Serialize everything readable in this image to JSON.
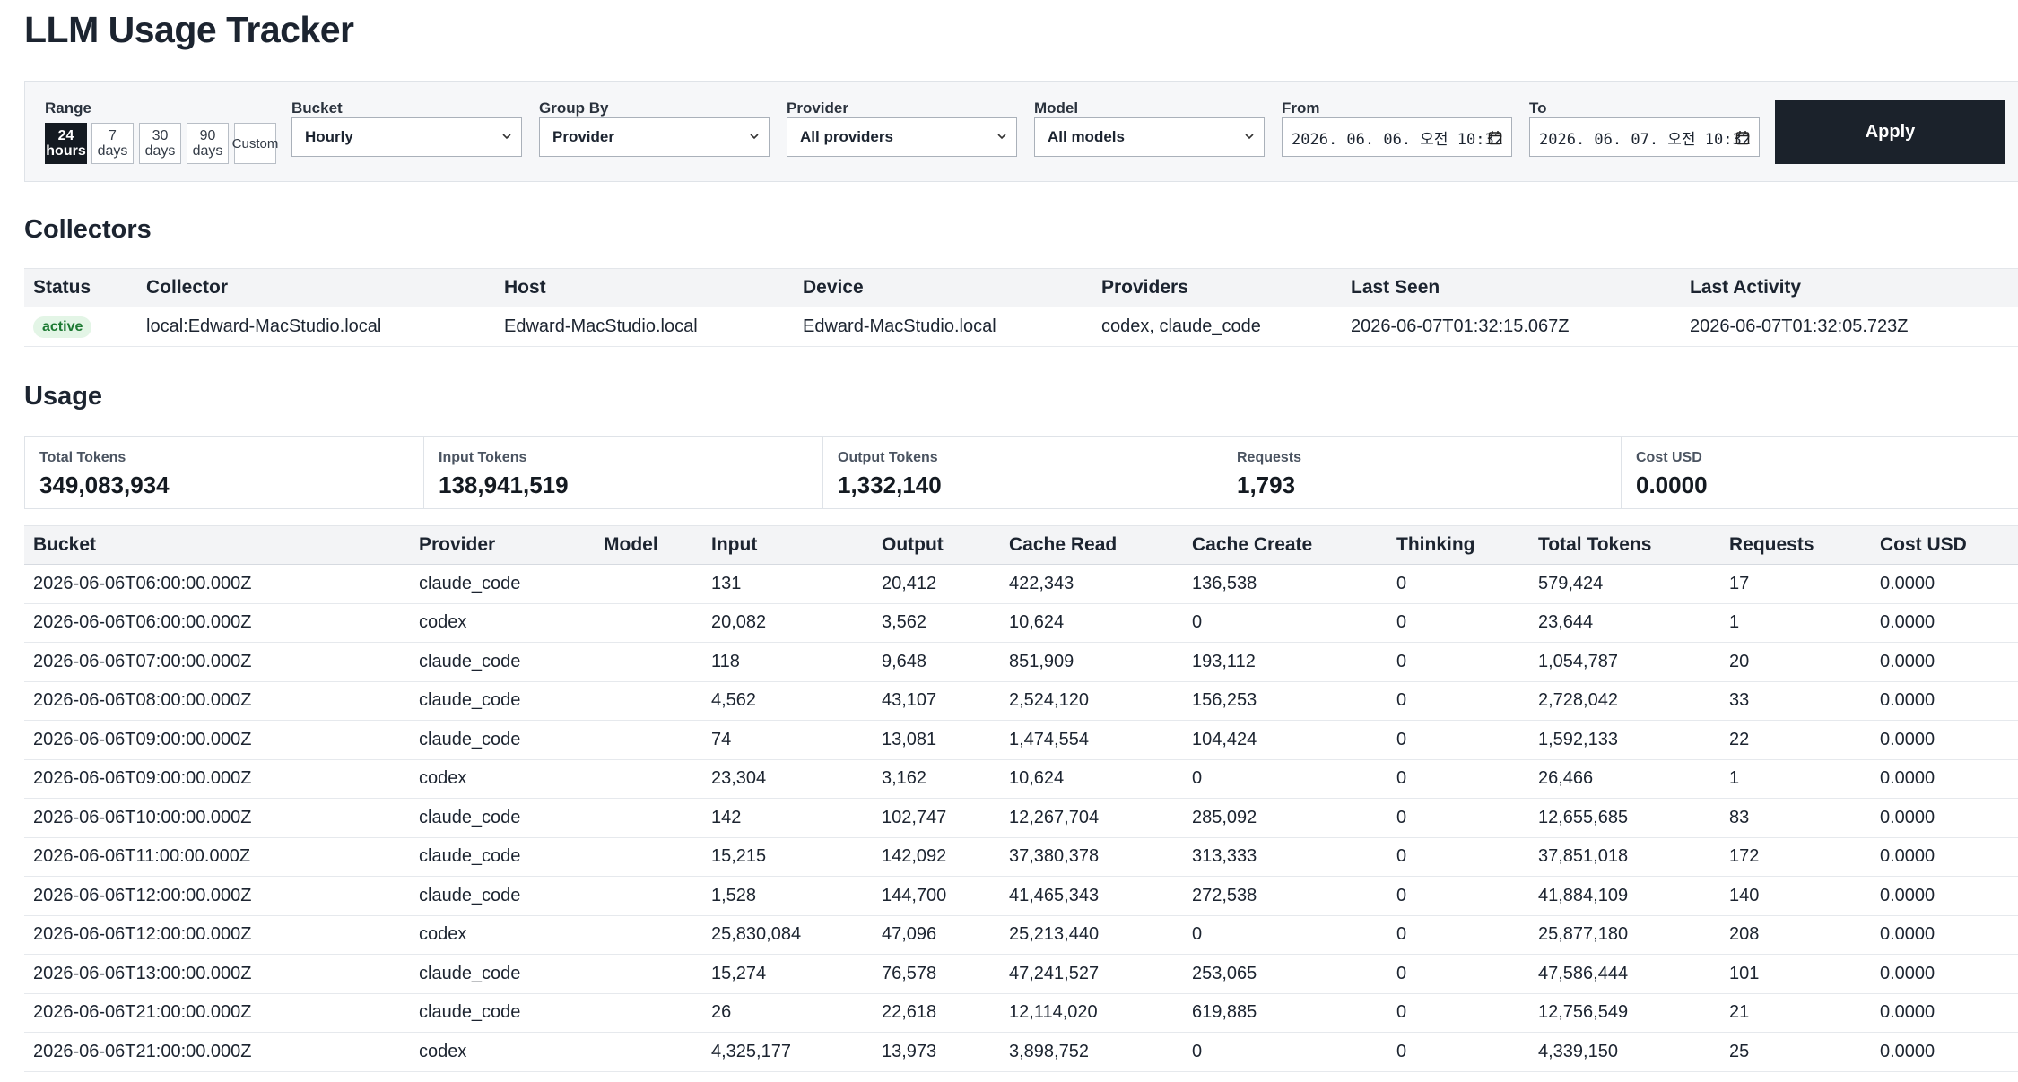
{
  "app": {
    "title": "LLM Usage Tracker"
  },
  "filters": {
    "range": {
      "label": "Range",
      "options": [
        {
          "line1": "24",
          "line2": "hours",
          "active": true
        },
        {
          "line1": "7",
          "line2": "days",
          "active": false
        },
        {
          "line1": "30",
          "line2": "days",
          "active": false
        },
        {
          "line1": "90",
          "line2": "days",
          "active": false
        },
        {
          "line1": "Custom",
          "line2": "",
          "active": false
        }
      ]
    },
    "bucket": {
      "label": "Bucket",
      "value": "Hourly"
    },
    "group_by": {
      "label": "Group By",
      "value": "Provider"
    },
    "provider": {
      "label": "Provider",
      "value": "All providers"
    },
    "model": {
      "label": "Model",
      "value": "All models"
    },
    "from": {
      "label": "From",
      "value": "2026. 06. 06. 오전 10:32"
    },
    "to": {
      "label": "To",
      "value": "2026. 06. 07. 오전 10:32"
    },
    "apply_label": "Apply"
  },
  "collectors": {
    "heading": "Collectors",
    "columns": [
      "Status",
      "Collector",
      "Host",
      "Device",
      "Providers",
      "Last Seen",
      "Last Activity"
    ],
    "rows": [
      {
        "status": "active",
        "collector": "local:Edward-MacStudio.local",
        "host": "Edward-MacStudio.local",
        "device": "Edward-MacStudio.local",
        "providers": "codex, claude_code",
        "last_seen": "2026-06-07T01:32:15.067Z",
        "last_activity": "2026-06-07T01:32:05.723Z"
      }
    ]
  },
  "usage": {
    "heading": "Usage",
    "stats": [
      {
        "label": "Total Tokens",
        "value": "349,083,934"
      },
      {
        "label": "Input Tokens",
        "value": "138,941,519"
      },
      {
        "label": "Output Tokens",
        "value": "1,332,140"
      },
      {
        "label": "Requests",
        "value": "1,793"
      },
      {
        "label": "Cost USD",
        "value": "0.0000"
      }
    ],
    "columns": [
      "Bucket",
      "Provider",
      "Model",
      "Input",
      "Output",
      "Cache Read",
      "Cache Create",
      "Thinking",
      "Total Tokens",
      "Requests",
      "Cost USD"
    ],
    "rows": [
      [
        "2026-06-06T06:00:00.000Z",
        "claude_code",
        "",
        "131",
        "20,412",
        "422,343",
        "136,538",
        "0",
        "579,424",
        "17",
        "0.0000"
      ],
      [
        "2026-06-06T06:00:00.000Z",
        "codex",
        "",
        "20,082",
        "3,562",
        "10,624",
        "0",
        "0",
        "23,644",
        "1",
        "0.0000"
      ],
      [
        "2026-06-06T07:00:00.000Z",
        "claude_code",
        "",
        "118",
        "9,648",
        "851,909",
        "193,112",
        "0",
        "1,054,787",
        "20",
        "0.0000"
      ],
      [
        "2026-06-06T08:00:00.000Z",
        "claude_code",
        "",
        "4,562",
        "43,107",
        "2,524,120",
        "156,253",
        "0",
        "2,728,042",
        "33",
        "0.0000"
      ],
      [
        "2026-06-06T09:00:00.000Z",
        "claude_code",
        "",
        "74",
        "13,081",
        "1,474,554",
        "104,424",
        "0",
        "1,592,133",
        "22",
        "0.0000"
      ],
      [
        "2026-06-06T09:00:00.000Z",
        "codex",
        "",
        "23,304",
        "3,162",
        "10,624",
        "0",
        "0",
        "26,466",
        "1",
        "0.0000"
      ],
      [
        "2026-06-06T10:00:00.000Z",
        "claude_code",
        "",
        "142",
        "102,747",
        "12,267,704",
        "285,092",
        "0",
        "12,655,685",
        "83",
        "0.0000"
      ],
      [
        "2026-06-06T11:00:00.000Z",
        "claude_code",
        "",
        "15,215",
        "142,092",
        "37,380,378",
        "313,333",
        "0",
        "37,851,018",
        "172",
        "0.0000"
      ],
      [
        "2026-06-06T12:00:00.000Z",
        "claude_code",
        "",
        "1,528",
        "144,700",
        "41,465,343",
        "272,538",
        "0",
        "41,884,109",
        "140",
        "0.0000"
      ],
      [
        "2026-06-06T12:00:00.000Z",
        "codex",
        "",
        "25,830,084",
        "47,096",
        "25,213,440",
        "0",
        "0",
        "25,877,180",
        "208",
        "0.0000"
      ],
      [
        "2026-06-06T13:00:00.000Z",
        "claude_code",
        "",
        "15,274",
        "76,578",
        "47,241,527",
        "253,065",
        "0",
        "47,586,444",
        "101",
        "0.0000"
      ],
      [
        "2026-06-06T21:00:00.000Z",
        "claude_code",
        "",
        "26",
        "22,618",
        "12,114,020",
        "619,885",
        "0",
        "12,756,549",
        "21",
        "0.0000"
      ],
      [
        "2026-06-06T21:00:00.000Z",
        "codex",
        "",
        "4,325,177",
        "13,973",
        "3,898,752",
        "0",
        "0",
        "4,339,150",
        "25",
        "0.0000"
      ]
    ]
  }
}
